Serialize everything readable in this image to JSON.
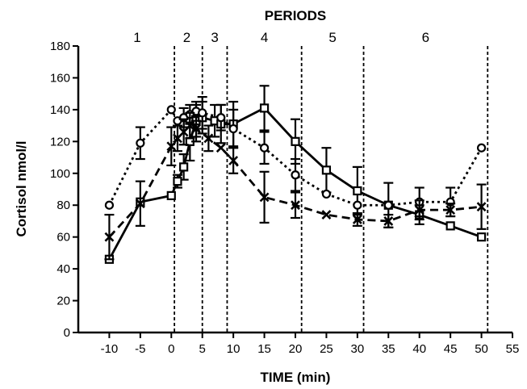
{
  "chart_data": {
    "type": "line",
    "title": "",
    "top_label": "PERIODS",
    "xlabel": "TIME (min)",
    "ylabel": "Cortisol nmol/l",
    "xlim": [
      -15,
      55
    ],
    "ylim": [
      0,
      180
    ],
    "x_ticks": [
      -10,
      -5,
      0,
      5,
      10,
      15,
      20,
      25,
      30,
      35,
      40,
      45,
      50,
      55
    ],
    "y_ticks": [
      0,
      20,
      40,
      60,
      80,
      100,
      120,
      140,
      160,
      180
    ],
    "periods": [
      {
        "label": "1",
        "center": -5.5
      },
      {
        "label": "2",
        "center": 2.5
      },
      {
        "label": "3",
        "center": 7
      },
      {
        "label": "4",
        "center": 15
      },
      {
        "label": "5",
        "center": 26
      },
      {
        "label": "6",
        "center": 41
      }
    ],
    "period_boundaries": [
      0.5,
      5,
      9,
      21,
      31,
      51
    ],
    "grid": false,
    "series": [
      {
        "marker": "square",
        "line_style": "solid",
        "points": [
          {
            "x": -10,
            "y": 46,
            "err": 0
          },
          {
            "x": -5,
            "y": 82,
            "err": 0
          },
          {
            "x": 0,
            "y": 86,
            "err": 0
          },
          {
            "x": 1,
            "y": 95,
            "err": 4
          },
          {
            "x": 2,
            "y": 104,
            "err": 8
          },
          {
            "x": 3,
            "y": 120,
            "err": 12
          },
          {
            "x": 4,
            "y": 133,
            "err": 10
          },
          {
            "x": 5,
            "y": 135,
            "err": 10
          },
          {
            "x": 7,
            "y": 133,
            "err": 10
          },
          {
            "x": 8,
            "y": 131,
            "err": 12
          },
          {
            "x": 10,
            "y": 131,
            "err": 14
          },
          {
            "x": 15,
            "y": 141,
            "err": 14
          },
          {
            "x": 20,
            "y": 120,
            "err": 14
          },
          {
            "x": 25,
            "y": 102,
            "err": 14
          },
          {
            "x": 30,
            "y": 89,
            "err": 15
          },
          {
            "x": 35,
            "y": 80,
            "err": 14
          },
          {
            "x": 40,
            "y": 74,
            "err": 6
          },
          {
            "x": 45,
            "y": 67,
            "err": 0
          },
          {
            "x": 50,
            "y": 60,
            "err": 0
          }
        ]
      },
      {
        "marker": "circle",
        "line_style": "dotted",
        "points": [
          {
            "x": -10,
            "y": 80,
            "err": 0
          },
          {
            "x": -5,
            "y": 119,
            "err": 10
          },
          {
            "x": 0,
            "y": 140,
            "err": 0
          },
          {
            "x": 1,
            "y": 133,
            "err": 0
          },
          {
            "x": 2,
            "y": 135,
            "err": 6
          },
          {
            "x": 3,
            "y": 137,
            "err": 6
          },
          {
            "x": 4,
            "y": 139,
            "err": 6
          },
          {
            "x": 5,
            "y": 138,
            "err": 10
          },
          {
            "x": 8,
            "y": 135,
            "err": 8
          },
          {
            "x": 10,
            "y": 128,
            "err": 12
          },
          {
            "x": 15,
            "y": 116,
            "err": 10
          },
          {
            "x": 20,
            "y": 99,
            "err": 10
          },
          {
            "x": 25,
            "y": 87,
            "err": 0
          },
          {
            "x": 30,
            "y": 80,
            "err": 0
          },
          {
            "x": 35,
            "y": 80,
            "err": 0
          },
          {
            "x": 40,
            "y": 82,
            "err": 9
          },
          {
            "x": 45,
            "y": 82,
            "err": 9
          },
          {
            "x": 50,
            "y": 116,
            "err": 0
          }
        ]
      },
      {
        "marker": "cross",
        "line_style": "dashed",
        "points": [
          {
            "x": -10,
            "y": 60,
            "err": 14
          },
          {
            "x": -5,
            "y": 81,
            "err": 14
          },
          {
            "x": 0,
            "y": 117,
            "err": 12
          },
          {
            "x": 1,
            "y": 122,
            "err": 8
          },
          {
            "x": 2,
            "y": 126,
            "err": 8
          },
          {
            "x": 3,
            "y": 130,
            "err": 8
          },
          {
            "x": 4,
            "y": 128,
            "err": 8
          },
          {
            "x": 6,
            "y": 122,
            "err": 8
          },
          {
            "x": 8,
            "y": 116,
            "err": 0
          },
          {
            "x": 10,
            "y": 108,
            "err": 8
          },
          {
            "x": 15,
            "y": 85,
            "err": 16
          },
          {
            "x": 20,
            "y": 80,
            "err": 8
          },
          {
            "x": 25,
            "y": 74,
            "err": 0
          },
          {
            "x": 30,
            "y": 71,
            "err": 4
          },
          {
            "x": 35,
            "y": 70,
            "err": 4
          },
          {
            "x": 40,
            "y": 77,
            "err": 6
          },
          {
            "x": 45,
            "y": 77,
            "err": 4
          },
          {
            "x": 50,
            "y": 79,
            "err": 14
          }
        ]
      }
    ]
  }
}
